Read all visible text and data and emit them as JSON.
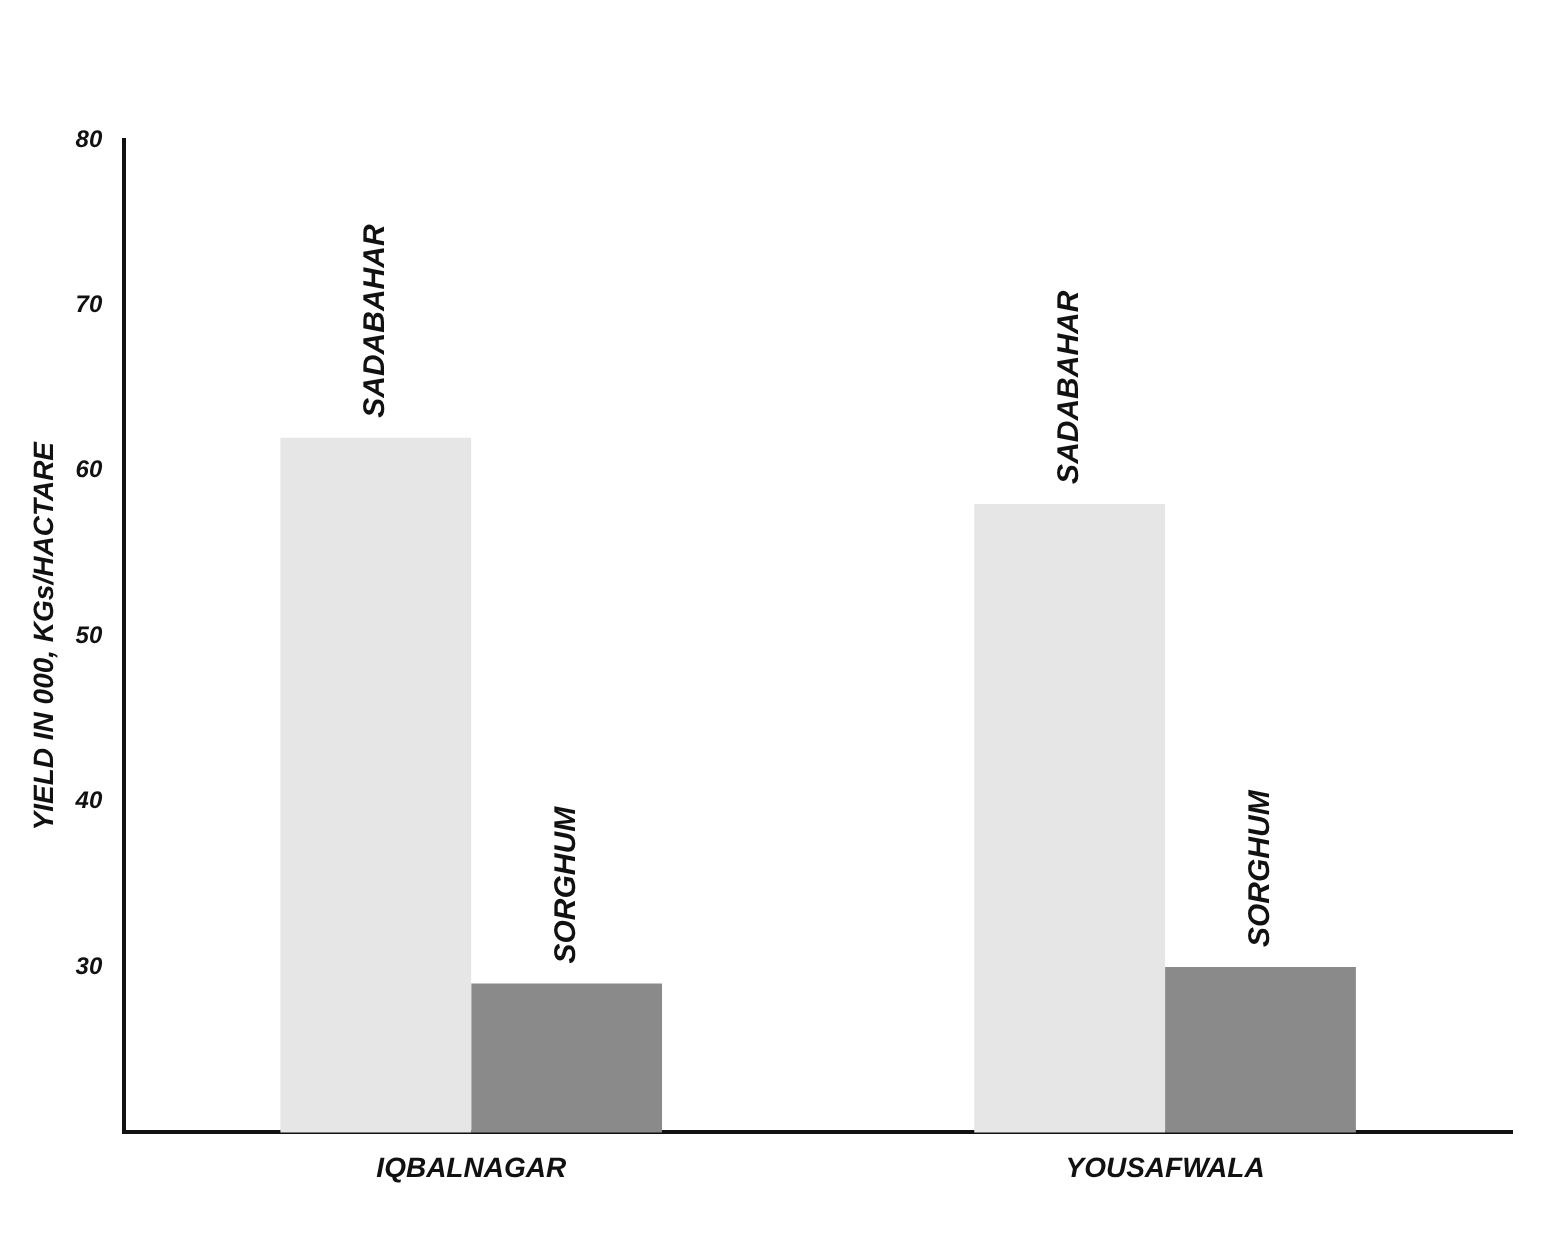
{
  "chart_data": {
    "type": "bar",
    "ylabel": "YIELD IN 000, KGs/HACTARE",
    "categories": [
      "IQBALNAGAR",
      "YOUSAFWALA"
    ],
    "series": [
      {
        "name": "SADABAHAR",
        "color": "#e6e6e6",
        "values": [
          62,
          58
        ]
      },
      {
        "name": "SORGHUM",
        "color": "#8a8a8a",
        "values": [
          29,
          30
        ]
      }
    ],
    "ylim": [
      20,
      80
    ],
    "yticks": [
      30,
      40,
      50,
      60,
      70,
      80
    ],
    "grid": false,
    "legend": false
  }
}
